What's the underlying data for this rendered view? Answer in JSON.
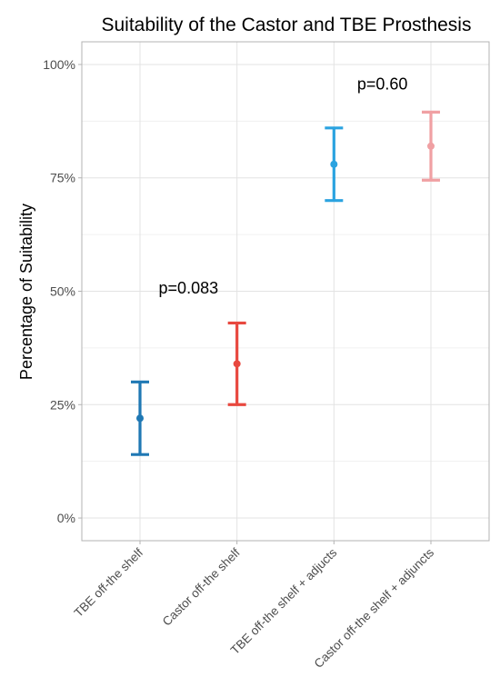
{
  "chart_data": {
    "type": "errorbar",
    "title": "Suitability of the Castor and TBE Prosthesis",
    "xlabel": "",
    "ylabel": "Percentage of Suitability",
    "ylim": [
      -0.05,
      1.05
    ],
    "yticks": [
      0,
      0.25,
      0.5,
      0.75,
      1.0
    ],
    "ytick_labels": [
      "0%",
      "25%",
      "50%",
      "75%",
      "100%"
    ],
    "grid": true,
    "legend": "none",
    "categories": [
      "TBE off-the shelf",
      "Castor off-the shelf",
      "TBE off-the shelf + adjucts",
      "Castor off-the shelf + adjuncts"
    ],
    "points": [
      {
        "category": "TBE off-the shelf",
        "value": 0.22,
        "lower": 0.14,
        "upper": 0.3,
        "color": "#1f78b4"
      },
      {
        "category": "Castor off-the shelf",
        "value": 0.34,
        "lower": 0.25,
        "upper": 0.43,
        "color": "#e8483f"
      },
      {
        "category": "TBE off-the shelf + adjucts",
        "value": 0.78,
        "lower": 0.7,
        "upper": 0.86,
        "color": "#2ba3e0"
      },
      {
        "category": "Castor off-the shelf + adjuncts",
        "value": 0.82,
        "lower": 0.745,
        "upper": 0.895,
        "color": "#f0a0a3"
      }
    ],
    "annotations": [
      {
        "text": "p=0.083",
        "x": 1.5,
        "y": 0.495
      },
      {
        "text": "p=0.60",
        "x": 3.5,
        "y": 0.945
      }
    ]
  }
}
